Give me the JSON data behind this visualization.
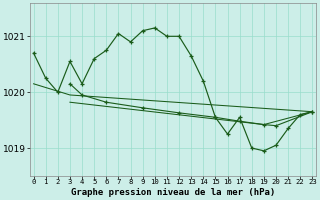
{
  "title": "Graphe pression niveau de la mer (hPa)",
  "background_color": "#cceee8",
  "grid_color": "#99ddcc",
  "line_color": "#1a5c1a",
  "ylim": [
    1018.5,
    1021.6
  ],
  "yticks": [
    1019,
    1020,
    1021
  ],
  "series1": [
    1020.7,
    1020.25,
    1020.0,
    1020.55,
    1020.15,
    1020.6,
    1020.75,
    1021.05,
    1020.9,
    1021.1,
    1021.15,
    1021.0,
    1021.0,
    1020.65,
    1020.2,
    1019.55,
    1019.25,
    1019.55,
    1019.0,
    1018.95,
    1019.05,
    1019.35,
    1019.6,
    1019.65
  ],
  "series2": [
    1020.15,
    1019.95,
    1019.82,
    1019.72,
    1019.63,
    1019.55,
    1019.48,
    1019.42,
    1019.4,
    1019.65
  ],
  "series2_x": [
    3,
    4,
    6,
    9,
    12,
    15,
    17,
    19,
    20,
    23
  ],
  "line3_pts": [
    [
      0,
      1020.15
    ],
    [
      3,
      1019.95
    ],
    [
      23,
      1019.65
    ]
  ],
  "line4_pts": [
    [
      3,
      1019.82
    ],
    [
      19,
      1019.42
    ],
    [
      23,
      1019.65
    ]
  ]
}
